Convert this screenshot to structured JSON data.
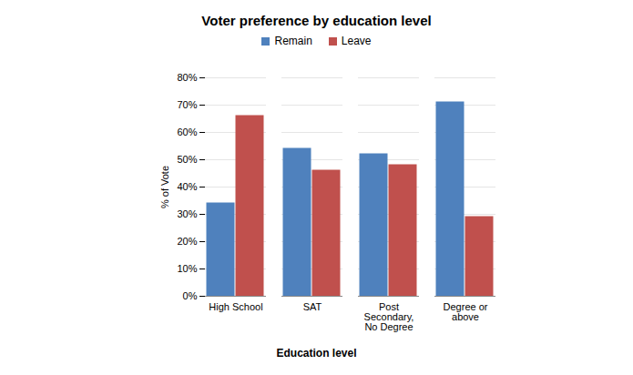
{
  "chart_data": {
    "type": "bar",
    "title": "Voter preference by education level",
    "x_label": "Education level",
    "y_label": "% of Vote",
    "categories": [
      "High School",
      "SAT",
      "Post Secondary, No Degree",
      "Degree or above"
    ],
    "series": [
      {
        "name": "Remain",
        "color": "#4f81bd",
        "values": [
          34,
          54,
          52,
          71
        ]
      },
      {
        "name": "Leave",
        "color": "#c0504d",
        "values": [
          66,
          46,
          48,
          29
        ]
      }
    ],
    "ylim": [
      0,
      80
    ],
    "yticks": [
      {
        "value": 0,
        "label": "0%"
      },
      {
        "value": 10,
        "label": "10%"
      },
      {
        "value": 20,
        "label": "20%"
      },
      {
        "value": 30,
        "label": "30%"
      },
      {
        "value": 40,
        "label": "40%"
      },
      {
        "value": 50,
        "label": "50%"
      },
      {
        "value": 60,
        "label": "60%"
      },
      {
        "value": 70,
        "label": "70%"
      },
      {
        "value": 80,
        "label": "80%"
      }
    ],
    "grid": true,
    "legend": "top"
  }
}
